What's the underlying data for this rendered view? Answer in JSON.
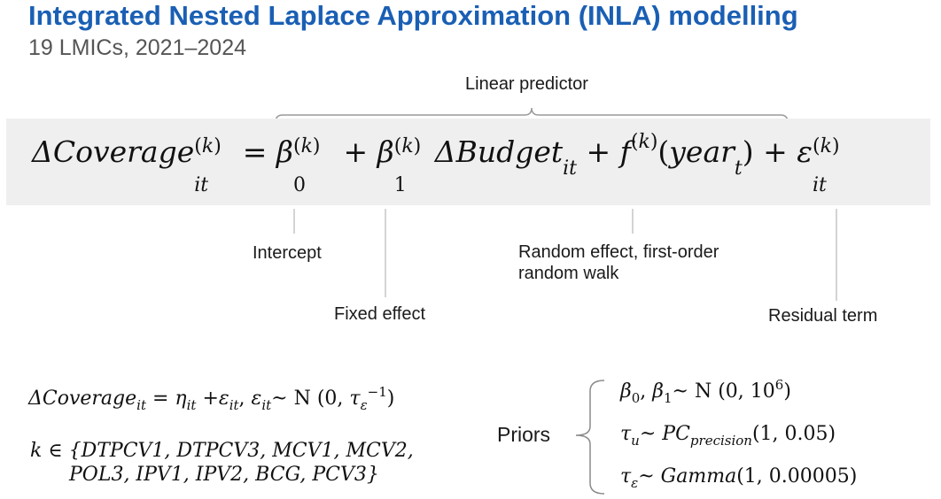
{
  "header": {
    "title": "Integrated Nested Laplace Approximation (INLA) modelling",
    "subtitle": "19 LMICs, 2021–2024"
  },
  "diagram": {
    "brace_label": "Linear predictor",
    "annotations": {
      "intercept": "Intercept",
      "fixed_effect": "Fixed effect",
      "random_effect_line1": "Random effect, first-order",
      "random_effect_line2": "random walk",
      "residual": "Residual term"
    }
  },
  "equations": {
    "model_spec_vaccines_line1": "k  ∈ {DTPCV1, DTPCV3, MCV1, MCV2,",
    "model_spec_vaccines_line2": "POL3, IPV1, IPV2, BCG, PCV3}",
    "priors_label": "Priors"
  }
}
